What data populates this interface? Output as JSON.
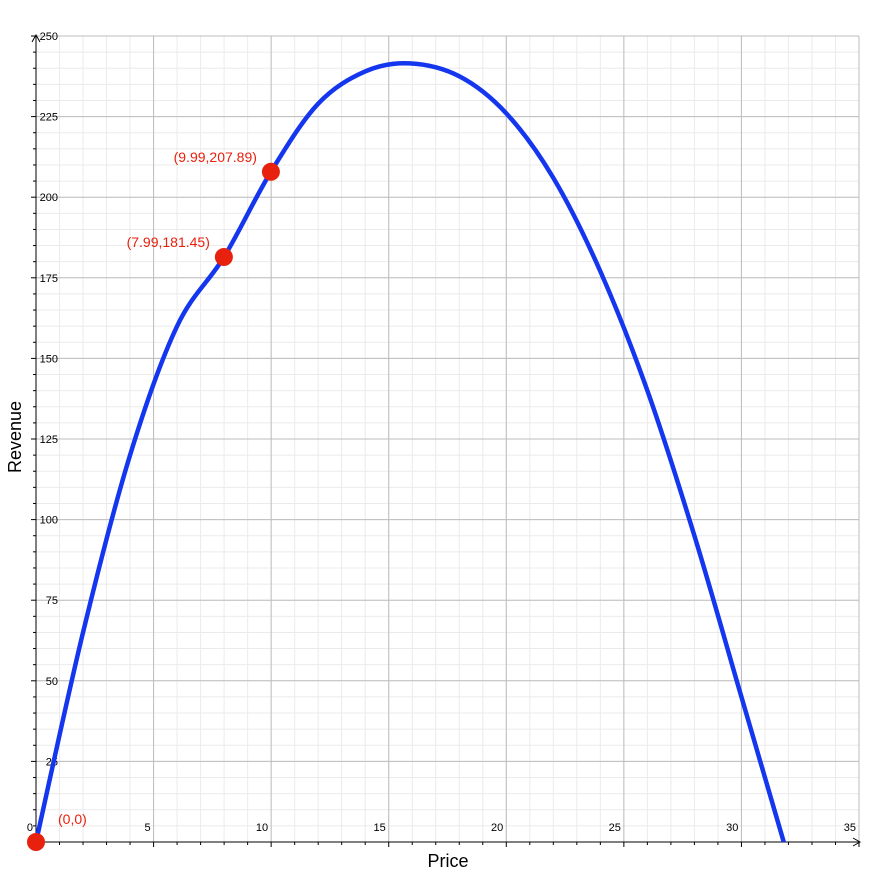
{
  "chart_data": {
    "type": "line",
    "title": "",
    "xlabel": "Price",
    "ylabel": "Revenue",
    "xlim": [
      0,
      35
    ],
    "ylim": [
      0,
      250
    ],
    "x_major_step": 5,
    "y_major_step": 25,
    "minor_divisions": 5,
    "grid": true,
    "x_tick_labels": [
      "0",
      "5",
      "10",
      "15",
      "20",
      "25",
      "30",
      "35"
    ],
    "y_tick_labels": [
      "25",
      "50",
      "75",
      "100",
      "125",
      "150",
      "175",
      "200",
      "225",
      "250"
    ],
    "series": [
      {
        "color": "#1436ee",
        "x": [
          0,
          2,
          4,
          6,
          8,
          10,
          12,
          14,
          15.9,
          18,
          20,
          22,
          24,
          26,
          28,
          30,
          31.8,
          32
        ],
        "y": [
          0,
          65,
          120,
          160,
          181.5,
          208,
          229,
          239,
          241.5,
          237.5,
          226,
          206,
          177,
          140,
          95,
          45,
          0,
          -5
        ]
      }
    ],
    "points": [
      {
        "x": 0,
        "y": 0,
        "label": "(0,0)",
        "color": "#e8210e"
      },
      {
        "x": 7.99,
        "y": 181.45,
        "label": "(7.99,181.45)",
        "color": "#e8210e"
      },
      {
        "x": 9.99,
        "y": 207.89,
        "label": "(9.99,207.89)",
        "color": "#e8210e"
      }
    ]
  }
}
